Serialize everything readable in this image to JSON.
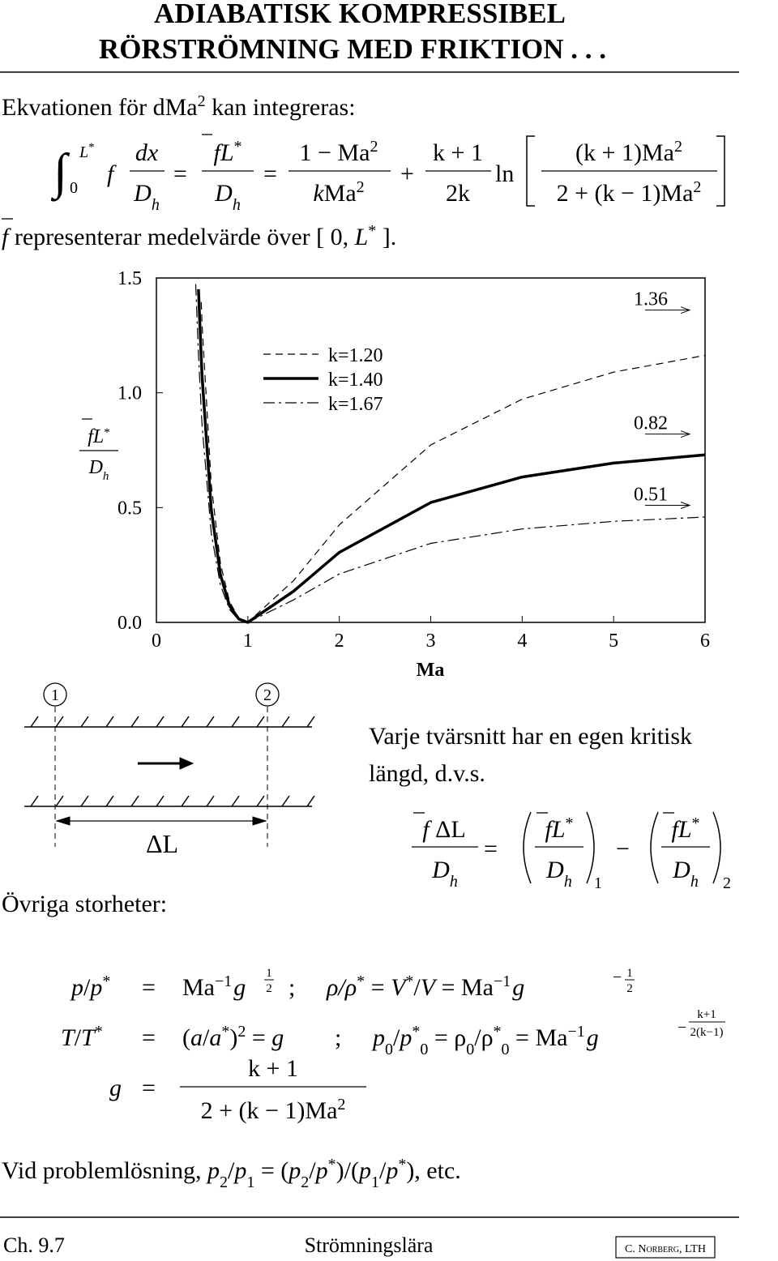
{
  "header": {
    "title": [
      "ADIABATISK KOMPRESSIBEL",
      "RÖRSTRÖMNING MED FRIKTION . . ."
    ]
  },
  "intro": [
    "Ekvationen för dMa",
    "2",
    " kan integreras:"
  ],
  "equation_1": [
    "∫",
    "L",
    "*",
    "0",
    "f",
    "dx",
    "D",
    "h",
    "=",
    "f",
    "L",
    "*",
    "D",
    "h",
    "=",
    "1 − Ma",
    "2",
    "k",
    "Ma",
    "2",
    "+",
    "k + 1",
    "2k",
    "ln",
    "(k + 1)Ma",
    "2",
    "2 + (k − 1)Ma",
    "2"
  ],
  "note": [
    "f",
    " representerar medelvärde över [ 0, ",
    "L",
    "*",
    " ]."
  ],
  "chart_data": {
    "type": "line",
    "xlabel": "Ma",
    "ylabel": {
      "numerator": [
        "f",
        "L",
        "*"
      ],
      "denominator": [
        "D",
        "h"
      ]
    },
    "x": [
      0.43,
      0.46,
      0.49,
      0.5,
      0.6,
      0.7,
      0.8,
      0.9,
      1,
      1.5,
      2,
      3,
      4,
      5,
      6
    ],
    "series": [
      {
        "name": "k=1.20",
        "color": "#000000",
        "linestyle": "dashed",
        "linewidth": 1.2,
        "values": [
          null,
          null,
          1.395,
          1.294,
          0.6,
          0.257,
          0.09,
          0.018,
          0,
          0.182,
          0.425,
          0.773,
          0.972,
          1.09,
          1.163
        ]
      },
      {
        "name": "k=1.40",
        "color": "#000000",
        "linestyle": "solid",
        "linewidth": 3.5,
        "values": [
          null,
          1.451,
          1.154,
          1.069,
          0.491,
          0.208,
          0.072,
          0.015,
          0,
          0.136,
          0.305,
          0.522,
          0.633,
          0.694,
          0.73
        ]
      },
      {
        "name": "k=1.67",
        "color": "#000000",
        "linestyle": "dashdot",
        "linewidth": 1.2,
        "values": [
          1.473,
          1.166,
          0.924,
          0.855,
          0.388,
          0.162,
          0.056,
          0.011,
          0,
          0.098,
          0.211,
          0.344,
          0.407,
          0.44,
          0.459
        ]
      }
    ],
    "asymptotes": [
      1.36,
      0.82,
      0.51
    ],
    "xlim": [
      0,
      6
    ],
    "ylim": [
      0,
      1.5
    ],
    "xticks": [
      0,
      1,
      2,
      3,
      4,
      5,
      6
    ],
    "yticks": [
      {
        "value": 0,
        "label": "0.0"
      },
      {
        "value": 0.5,
        "label": "0.5"
      },
      {
        "value": 1,
        "label": "1.0"
      },
      1.5
    ],
    "grid": false,
    "legend": "upper center"
  },
  "diagram": {
    "stations": [
      "1",
      "2"
    ],
    "length_label": "ΔL"
  },
  "text_2": [
    "Varje tvärsnitt har en egen kritisk",
    "längd, d.v.s."
  ],
  "equation_2": [
    "f",
    " ΔL",
    "D",
    "h",
    "=",
    "f",
    "L",
    "*",
    "D",
    "h",
    "1",
    "−",
    "f",
    "L",
    "*",
    "D",
    "h",
    "2"
  ],
  "other_label": "Övriga storheter:",
  "equations_3": [
    [
      "p",
      "/",
      "p",
      "*",
      "=",
      "Ma",
      "−1",
      "g",
      "1",
      "2",
      ";",
      "ρ/ρ",
      "*",
      " = ",
      "V",
      "*",
      "/",
      "V",
      " = Ma",
      "−1",
      "g",
      "−",
      "1",
      "2"
    ],
    [
      "T",
      "/",
      "T",
      "*",
      "=",
      "(",
      "a",
      "/",
      "a",
      "*",
      ")",
      "2",
      " = ",
      "g",
      ";",
      "p",
      "0",
      "/",
      "p",
      "*",
      "0",
      " = ρ",
      "0",
      "/ρ",
      "*",
      "0",
      " = Ma",
      "−1",
      "g",
      "−",
      "k+1",
      "2(k−1)"
    ],
    [
      "g",
      "=",
      "k + 1",
      "2 + (k − 1)Ma",
      "2"
    ]
  ],
  "closing": [
    "Vid problemlösning, ",
    "p",
    "2",
    "/",
    "p",
    "1",
    " = (",
    "p",
    "2",
    "/",
    "p",
    "*",
    ")/(",
    "p",
    "1",
    "/",
    "p",
    "*",
    "), etc."
  ],
  "footer": {
    "chapter": "Ch. 9.7",
    "course": "Strömningslära",
    "author": "C. Norberg, LTH"
  }
}
